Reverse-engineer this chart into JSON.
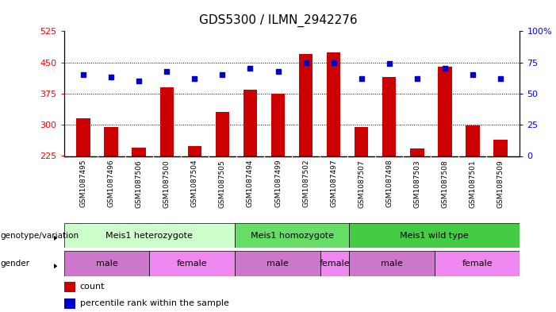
{
  "title": "GDS5300 / ILMN_2942276",
  "samples": [
    "GSM1087495",
    "GSM1087496",
    "GSM1087506",
    "GSM1087500",
    "GSM1087504",
    "GSM1087505",
    "GSM1087494",
    "GSM1087499",
    "GSM1087502",
    "GSM1087497",
    "GSM1087507",
    "GSM1087498",
    "GSM1087503",
    "GSM1087508",
    "GSM1087501",
    "GSM1087509"
  ],
  "counts": [
    315,
    295,
    245,
    390,
    248,
    330,
    385,
    375,
    470,
    475,
    295,
    415,
    243,
    440,
    298,
    265
  ],
  "percentiles": [
    65,
    63,
    60,
    68,
    62,
    65,
    70,
    68,
    75,
    75,
    62,
    74,
    62,
    70,
    65,
    62
  ],
  "ylim_left": [
    225,
    525
  ],
  "ylim_right": [
    0,
    100
  ],
  "yticks_left": [
    225,
    300,
    375,
    450,
    525
  ],
  "yticks_right": [
    0,
    25,
    50,
    75,
    100
  ],
  "bar_color": "#cc0000",
  "dot_color": "#0000cc",
  "genotype_groups": [
    {
      "label": "Meis1 heterozygote",
      "start": 0,
      "end": 6,
      "color": "#ccffcc"
    },
    {
      "label": "Meis1 homozygote",
      "start": 6,
      "end": 10,
      "color": "#66dd66"
    },
    {
      "label": "Meis1 wild type",
      "start": 10,
      "end": 16,
      "color": "#44cc44"
    }
  ],
  "gender_groups": [
    {
      "label": "male",
      "start": 0,
      "end": 3,
      "color": "#cc77cc"
    },
    {
      "label": "female",
      "start": 3,
      "end": 6,
      "color": "#ee88ee"
    },
    {
      "label": "male",
      "start": 6,
      "end": 9,
      "color": "#cc77cc"
    },
    {
      "label": "female",
      "start": 9,
      "end": 10,
      "color": "#ee88ee"
    },
    {
      "label": "male",
      "start": 10,
      "end": 13,
      "color": "#cc77cc"
    },
    {
      "label": "female",
      "start": 13,
      "end": 16,
      "color": "#ee88ee"
    }
  ],
  "sample_bg_color": "#cccccc",
  "plot_bg_color": "#ffffff"
}
